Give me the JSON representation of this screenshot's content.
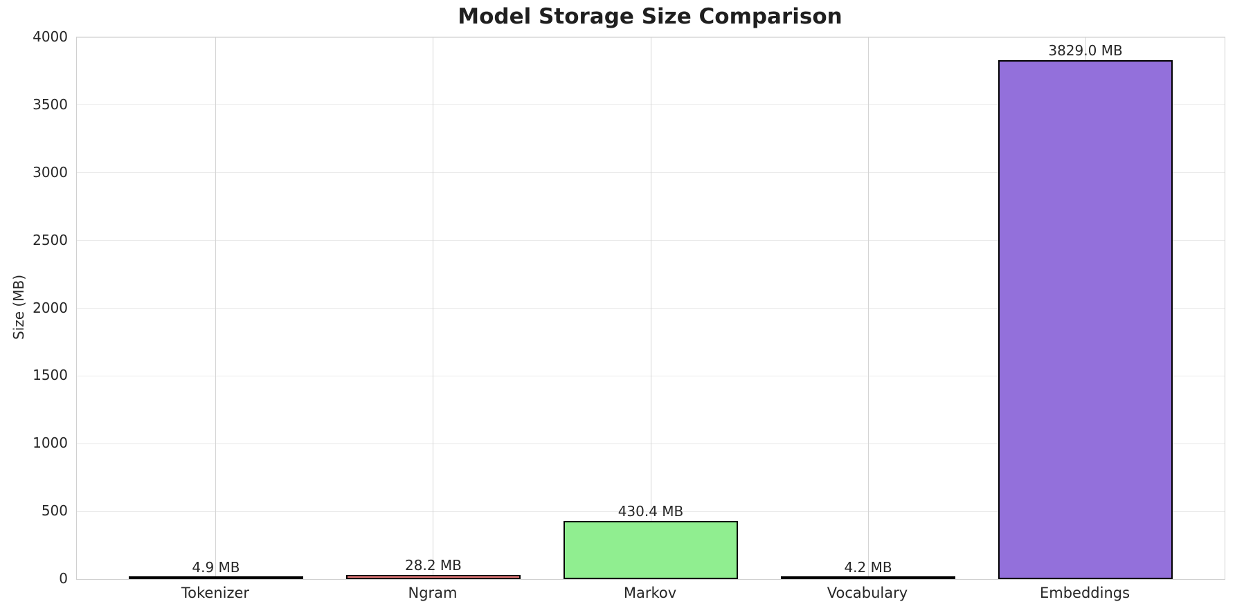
{
  "chart_data": {
    "type": "bar",
    "title": "Model Storage Size Comparison",
    "ylabel": "Size (MB)",
    "xlabel": "",
    "categories": [
      "Tokenizer",
      "Ngram",
      "Markov",
      "Vocabulary",
      "Embeddings"
    ],
    "values": [
      4.9,
      28.2,
      430.4,
      4.2,
      3829.0
    ],
    "value_labels": [
      "4.9 MB",
      "28.2 MB",
      "430.4 MB",
      "4.2 MB",
      "3829.0 MB"
    ],
    "bar_colors": [
      "#87CEEB",
      "#F08080",
      "#90EE90",
      "#FFD700",
      "#9370DB"
    ],
    "bar_edge_color": "#000000",
    "ylim": [
      0,
      4000
    ],
    "yticks": [
      0,
      500,
      1000,
      1500,
      2000,
      2500,
      3000,
      3500,
      4000
    ],
    "grid": true,
    "legend": "none",
    "background_color": "#ffffff",
    "grid_color_horizontal": "#e9e9e9",
    "grid_color_vertical": "#d4d4d4"
  }
}
